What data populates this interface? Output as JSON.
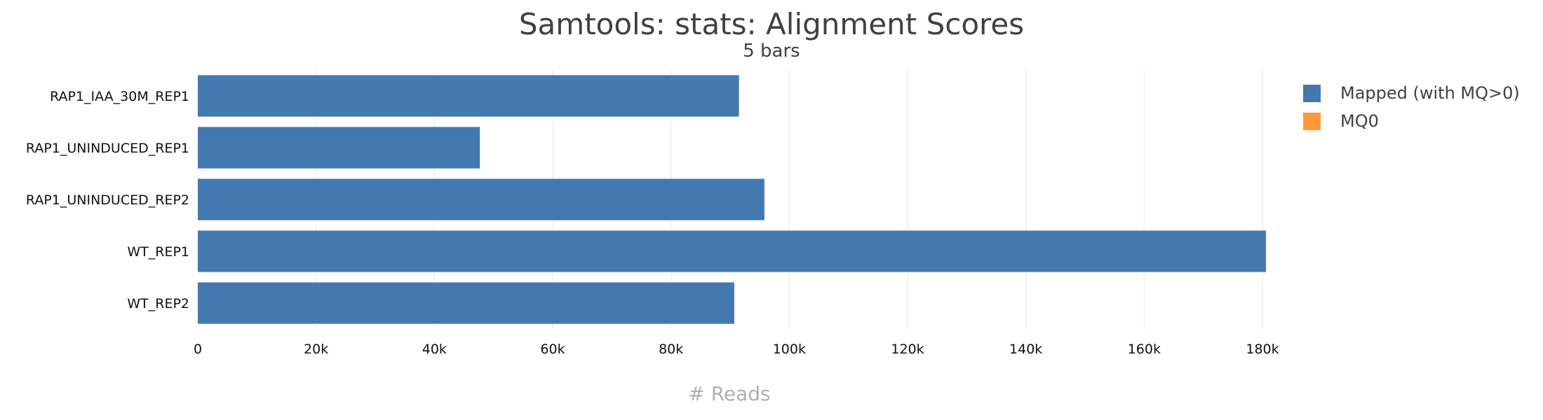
{
  "chart_data": {
    "type": "bar",
    "orientation": "horizontal",
    "stacked": true,
    "title": "Samtools: stats: Alignment Scores",
    "subtitle": "5 bars",
    "xlabel": "# Reads",
    "ylabel": "",
    "xlim": [
      0,
      190000
    ],
    "xticks": [
      {
        "value": 0,
        "label": "0"
      },
      {
        "value": 20000,
        "label": "20k"
      },
      {
        "value": 40000,
        "label": "40k"
      },
      {
        "value": 60000,
        "label": "60k"
      },
      {
        "value": 80000,
        "label": "80k"
      },
      {
        "value": 100000,
        "label": "100k"
      },
      {
        "value": 120000,
        "label": "120k"
      },
      {
        "value": 140000,
        "label": "140k"
      },
      {
        "value": 160000,
        "label": "160k"
      },
      {
        "value": 180000,
        "label": "180k"
      }
    ],
    "categories": [
      "RAP1_IAA_30M_REP1",
      "RAP1_UNINDUCED_REP1",
      "RAP1_UNINDUCED_REP2",
      "WT_REP1",
      "WT_REP2"
    ],
    "series": [
      {
        "name": "Mapped (with MQ>0)",
        "color": "#4479b0",
        "values": [
          91500,
          47700,
          95800,
          180600,
          90700
        ]
      },
      {
        "name": "MQ0",
        "color": "#fd9a35",
        "values": [
          0,
          0,
          0,
          0,
          0
        ]
      }
    ],
    "grid": "vertical",
    "legend_position": "top-right"
  }
}
